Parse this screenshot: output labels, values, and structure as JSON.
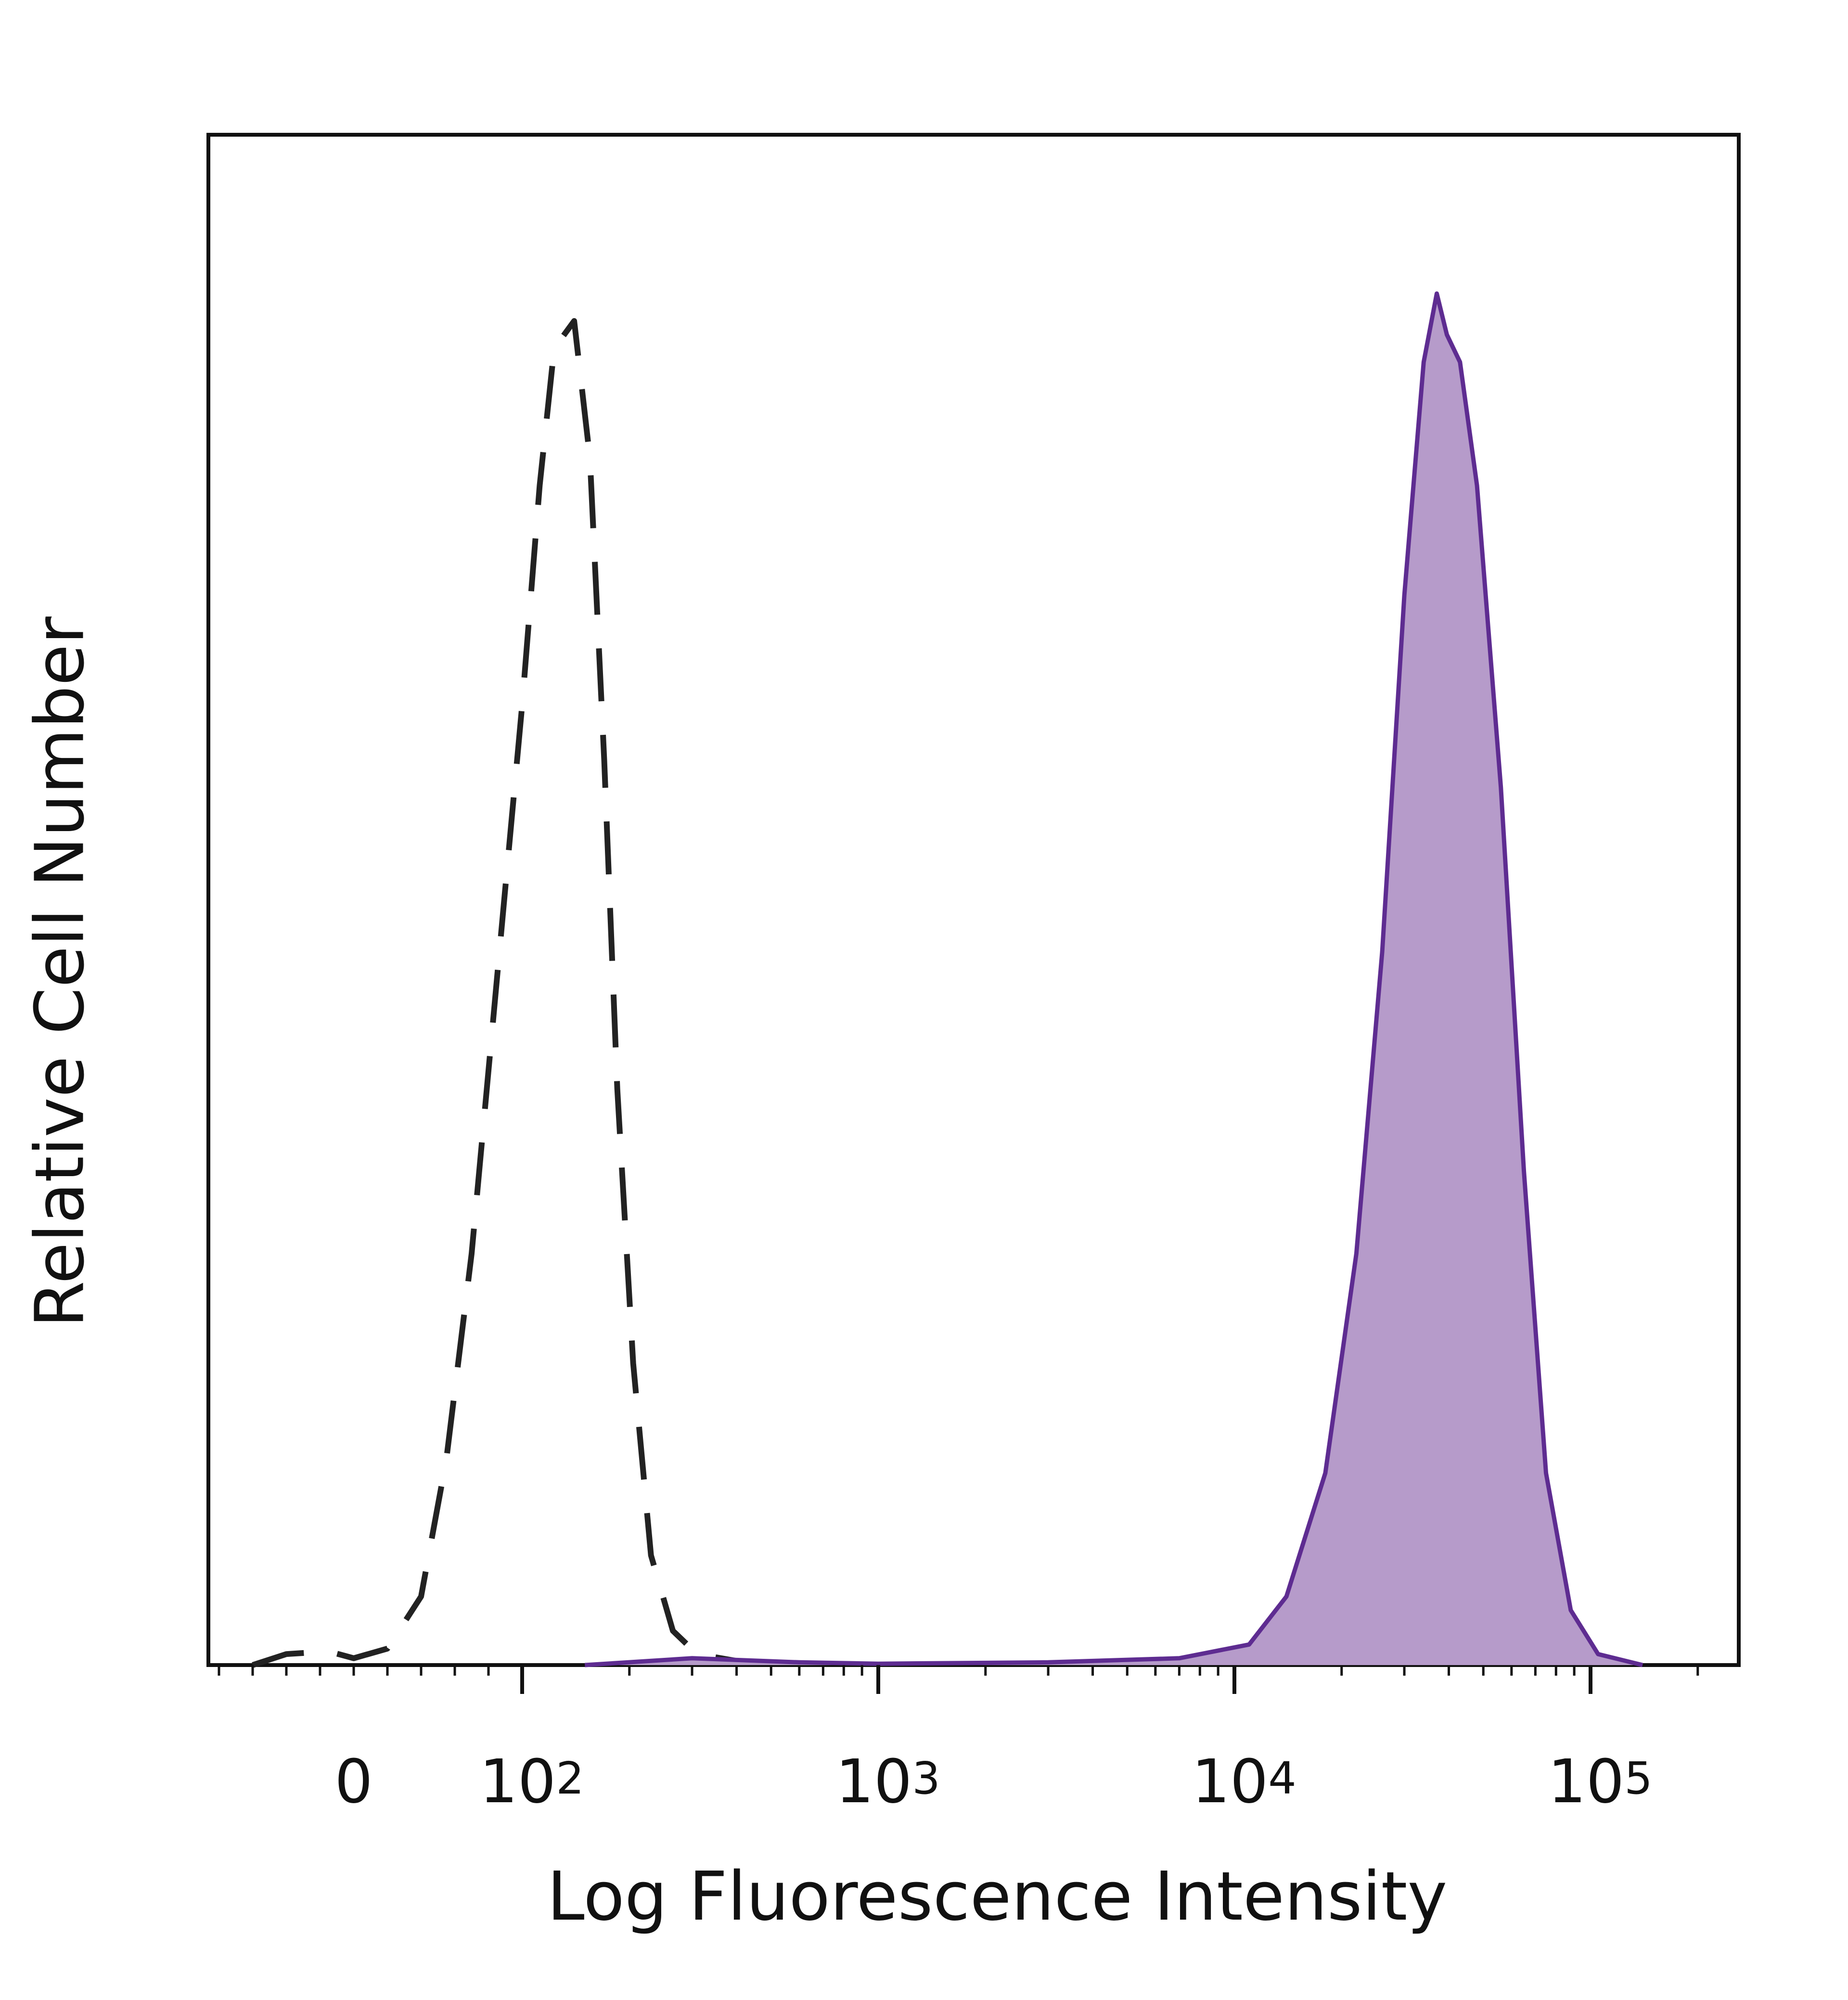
{
  "chart_data": {
    "type": "area",
    "xlabel": "Log Fluorescence Intensity",
    "ylabel": "Relative Cell Number",
    "x_scale": "biexponential",
    "x_ticks": [
      {
        "value": 0,
        "base": "0",
        "exp": ""
      },
      {
        "value": 100,
        "base": "10",
        "exp": "2"
      },
      {
        "value": 1000,
        "base": "10",
        "exp": "3"
      },
      {
        "value": 10000,
        "base": "10",
        "exp": "4"
      },
      {
        "value": 100000,
        "base": "10",
        "exp": "5"
      }
    ],
    "y_ticks": [],
    "ylim": [
      0,
      1
    ],
    "grid": false,
    "legend": "none",
    "series": [
      {
        "style": "dashed",
        "color": "#222222",
        "filled": false,
        "points": [
          [
            -60,
            0.0
          ],
          [
            -40,
            0.008
          ],
          [
            -15,
            0.01
          ],
          [
            0,
            0.005
          ],
          [
            20,
            0.012
          ],
          [
            40,
            0.05
          ],
          [
            55,
            0.15
          ],
          [
            70,
            0.3
          ],
          [
            85,
            0.5
          ],
          [
            100,
            0.7
          ],
          [
            112,
            0.86
          ],
          [
            123,
            0.96
          ],
          [
            140,
            0.98
          ],
          [
            155,
            0.88
          ],
          [
            170,
            0.66
          ],
          [
            185,
            0.42
          ],
          [
            205,
            0.22
          ],
          [
            230,
            0.08
          ],
          [
            265,
            0.025
          ],
          [
            310,
            0.008
          ],
          [
            400,
            0.003
          ]
        ]
      },
      {
        "style": "solid",
        "color": "#5e2c91",
        "fill": "#b69bca",
        "filled": true,
        "points": [
          [
            150,
            0.0
          ],
          [
            300,
            0.005
          ],
          [
            600,
            0.002
          ],
          [
            1000,
            0.001
          ],
          [
            3000,
            0.002
          ],
          [
            7000,
            0.005
          ],
          [
            11000,
            0.015
          ],
          [
            14000,
            0.05
          ],
          [
            18000,
            0.14
          ],
          [
            22000,
            0.3
          ],
          [
            26000,
            0.52
          ],
          [
            30000,
            0.78
          ],
          [
            34000,
            0.95
          ],
          [
            37000,
            1.0
          ],
          [
            39500,
            0.97
          ],
          [
            43000,
            0.95
          ],
          [
            48000,
            0.86
          ],
          [
            56000,
            0.64
          ],
          [
            65000,
            0.36
          ],
          [
            75000,
            0.14
          ],
          [
            88000,
            0.04
          ],
          [
            105000,
            0.008
          ],
          [
            140000,
            0.0
          ]
        ]
      }
    ]
  }
}
